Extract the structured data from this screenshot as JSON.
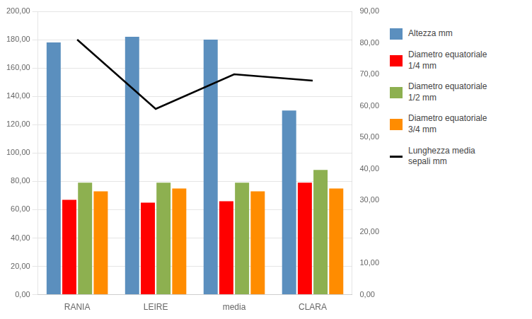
{
  "chart_data": {
    "type": "bar",
    "categories": [
      "RANIA",
      "LEIRE",
      "media",
      "CLARA"
    ],
    "series": [
      {
        "name": "Altezza  mm",
        "color": "#5B8FBE",
        "values": [
          178.0,
          182.0,
          180.0,
          130.0
        ]
      },
      {
        "name": "Diametro equatoriale\n1/4 mm",
        "color": "#FF0000",
        "values": [
          67.0,
          65.0,
          66.0,
          79.0
        ]
      },
      {
        "name": "Diametro equatoriale\n1/2 mm",
        "color": "#8DB050",
        "values": [
          79.0,
          79.0,
          79.0,
          88.0
        ]
      },
      {
        "name": "Diametro equatoriale\n3/4 mm",
        "color": "#FF8C00",
        "values": [
          73.0,
          75.0,
          73.0,
          75.0
        ]
      },
      {
        "name": "Lunghezza media\nsepali mm",
        "color": "#000000",
        "values": [
          81.0,
          59.0,
          70.0,
          68.0
        ],
        "type": "line",
        "axis": "y2"
      }
    ],
    "ylim": [
      0,
      200
    ],
    "yticks": [
      {
        "value": 0,
        "label": "0,00"
      },
      {
        "value": 20,
        "label": "20,00"
      },
      {
        "value": 40,
        "label": "40,00"
      },
      {
        "value": 60,
        "label": "60,00"
      },
      {
        "value": 80,
        "label": "80,00"
      },
      {
        "value": 100,
        "label": "100,00"
      },
      {
        "value": 120,
        "label": "120,00"
      },
      {
        "value": 140,
        "label": "140,00"
      },
      {
        "value": 160,
        "label": "160,00"
      },
      {
        "value": 180,
        "label": "180,00"
      },
      {
        "value": 200,
        "label": "200,00"
      }
    ],
    "y2lim": [
      0,
      90
    ],
    "y2ticks": [
      {
        "value": 0,
        "label": "0,00"
      },
      {
        "value": 10,
        "label": "10,00"
      },
      {
        "value": 20,
        "label": "20,00"
      },
      {
        "value": 30,
        "label": "30,00"
      },
      {
        "value": 40,
        "label": "40,00"
      },
      {
        "value": 50,
        "label": "50,00"
      },
      {
        "value": 60,
        "label": "60,00"
      },
      {
        "value": 70,
        "label": "70,00"
      },
      {
        "value": 80,
        "label": "80,00"
      },
      {
        "value": 90,
        "label": "90,00"
      }
    ],
    "grid": true,
    "legend": "right"
  }
}
